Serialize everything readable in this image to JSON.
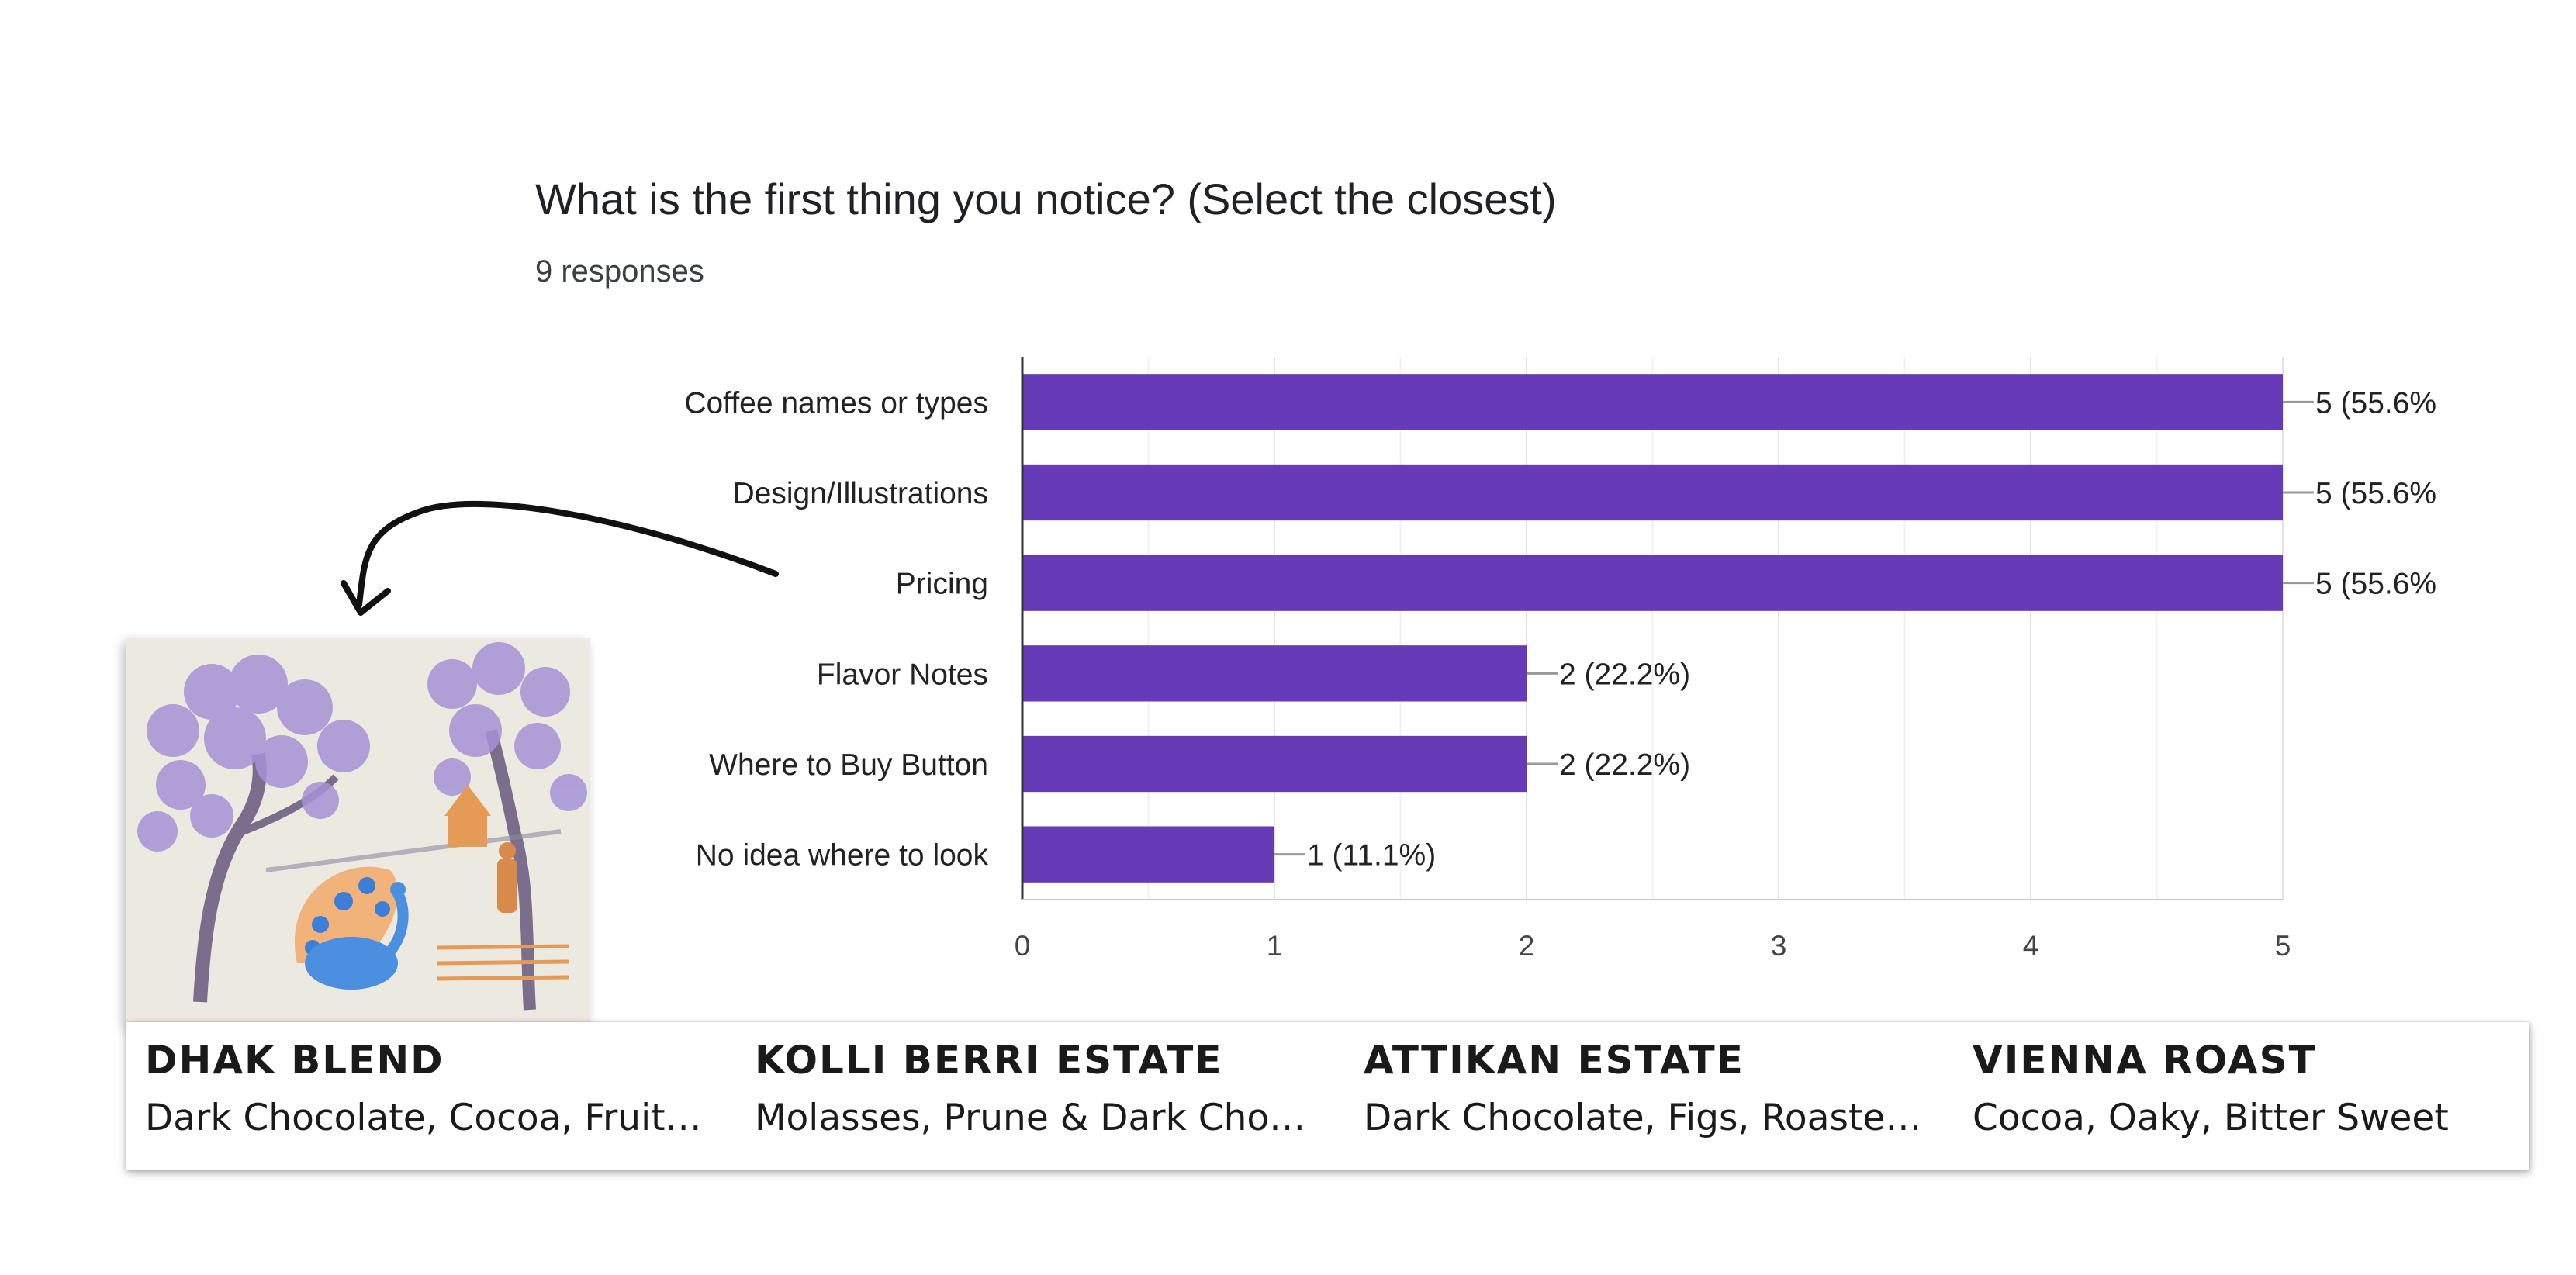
{
  "question": {
    "title": "What is the first thing you notice? (Select the closest)",
    "responses": "9 responses"
  },
  "chart_data": {
    "type": "bar",
    "orientation": "horizontal",
    "categories": [
      "Coffee names or types",
      "Design/Illustrations",
      "Pricing",
      "Flavor Notes",
      "Where to Buy Button",
      "No idea where to look"
    ],
    "values": [
      5,
      5,
      5,
      2,
      2,
      1
    ],
    "data_labels": [
      "5 (55.6%",
      "5 (55.6%",
      "5 (55.6%",
      "2 (22.2%)",
      "2 (22.2%)",
      "1 (11.1%)"
    ],
    "x_ticks": [
      "0",
      "1",
      "2",
      "3",
      "4",
      "5"
    ],
    "xlim": [
      0,
      5
    ],
    "grid": true,
    "bar_color": "#673ab7"
  },
  "products": [
    {
      "name": "DHAK BLEND",
      "notes": "Dark Chocolate, Cocoa, Fruit ..."
    },
    {
      "name": "KOLLI BERRI ESTATE",
      "notes": "Molasses, Prune & Dark Choc..."
    },
    {
      "name": "ATTIKAN ESTATE",
      "notes": "Dark Chocolate, Figs, Roasted..."
    },
    {
      "name": "VIENNA ROAST",
      "notes": "Cocoa, Oaky, Bitter Sweet"
    }
  ],
  "illustration": {
    "icon": "peacock-tree-illustration"
  }
}
